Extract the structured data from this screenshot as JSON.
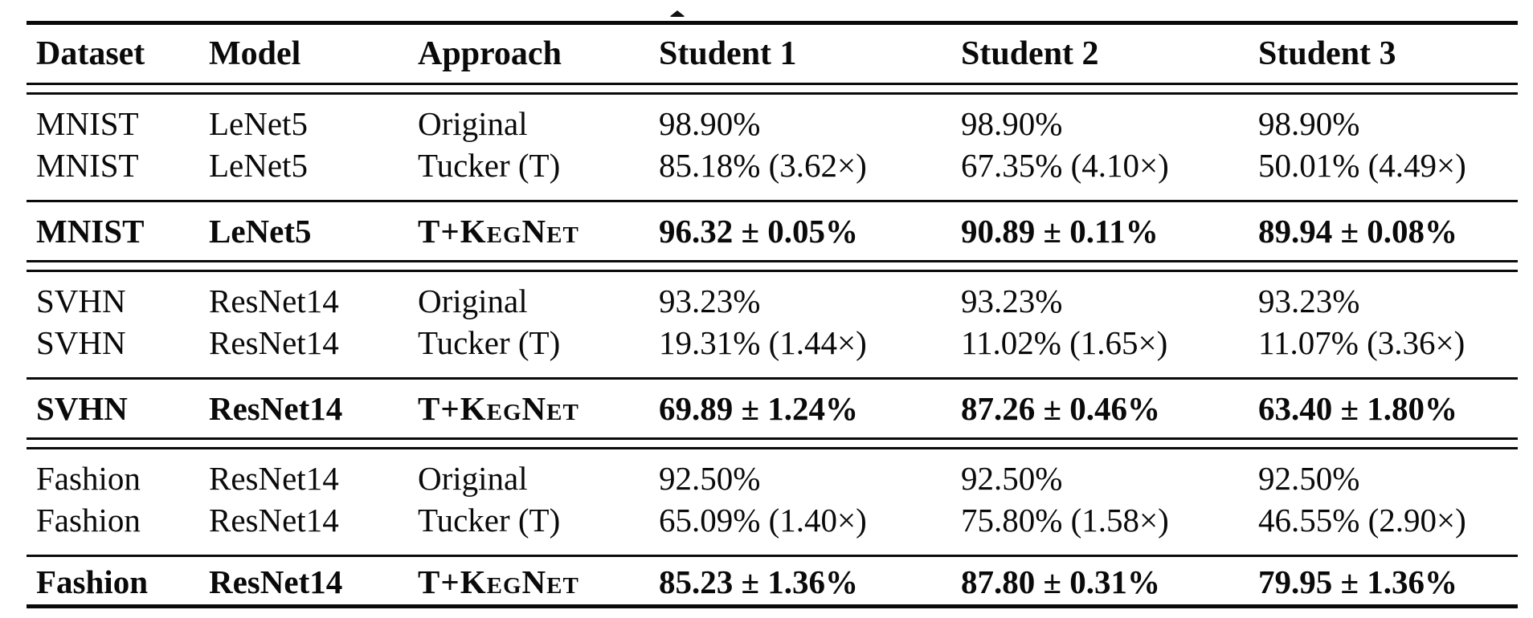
{
  "colors": {
    "background": "#ffffff",
    "text": "#0a0a0a",
    "rule": "#0a0a0a"
  },
  "table": {
    "headers": [
      "Dataset",
      "Model",
      "Approach",
      "Student 1",
      "Student 2",
      "Student 3"
    ],
    "rows": [
      {
        "cells": [
          "MNIST",
          "LeNet5",
          "Original",
          "98.90%",
          "98.90%",
          "98.90%"
        ],
        "emphasis": false
      },
      {
        "cells": [
          "MNIST",
          "LeNet5",
          "Tucker (T)",
          "85.18% (3.62×)",
          "67.35% (4.10×)",
          "50.01% (4.49×)"
        ],
        "emphasis": false
      },
      {
        "cells": [
          "MNIST",
          "LeNet5",
          "T+KegNet",
          "96.32 ± 0.05%",
          "90.89 ± 0.11%",
          "89.94 ± 0.08%"
        ],
        "emphasis": true
      },
      {
        "cells": [
          "SVHN",
          "ResNet14",
          "Original",
          "93.23%",
          "93.23%",
          "93.23%"
        ],
        "emphasis": false
      },
      {
        "cells": [
          "SVHN",
          "ResNet14",
          "Tucker (T)",
          "19.31% (1.44×)",
          "11.02% (1.65×)",
          "11.07% (3.36×)"
        ],
        "emphasis": false
      },
      {
        "cells": [
          "SVHN",
          "ResNet14",
          "T+KegNet",
          "69.89 ± 1.24%",
          "87.26 ± 0.46%",
          "63.40 ± 1.80%"
        ],
        "emphasis": true
      },
      {
        "cells": [
          "Fashion",
          "ResNet14",
          "Original",
          "92.50%",
          "92.50%",
          "92.50%"
        ],
        "emphasis": false
      },
      {
        "cells": [
          "Fashion",
          "ResNet14",
          "Tucker (T)",
          "65.09% (1.40×)",
          "75.80% (1.58×)",
          "46.55% (2.90×)"
        ],
        "emphasis": false
      },
      {
        "cells": [
          "Fashion",
          "ResNet14",
          "T+KegNet",
          "85.23 ± 1.36%",
          "87.80 ± 0.31%",
          "79.95 ± 1.36%"
        ],
        "emphasis": true
      }
    ]
  }
}
